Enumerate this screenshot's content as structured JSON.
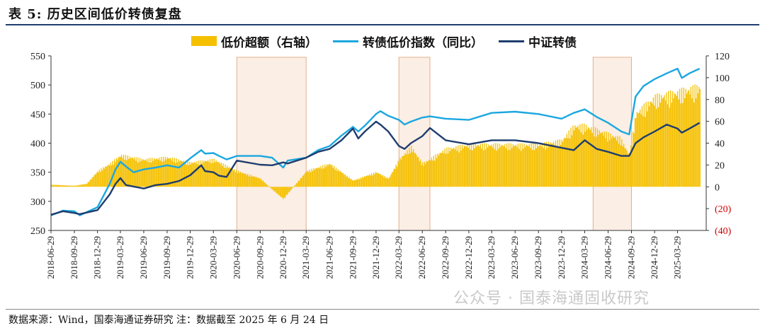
{
  "title": "表 5:  历史区间低价转债复盘",
  "footer": "数据来源：Wind，国泰海通证券研究  注：数据截至 2025 年 6 月 24 日",
  "watermark": "公众号 · 国泰海通固收研究",
  "colors": {
    "bar": "#f5c000",
    "line_light": "#1aa7e0",
    "line_dark": "#1f3d6e",
    "highlight_fill": "#fbeee4",
    "highlight_stroke": "#e3b08c",
    "negative_label": "#d00000"
  },
  "legend": {
    "bar_label": "低价超额（右轴）",
    "light_line_label": "转债低价指数（同比）",
    "dark_line_label": "中证转债"
  },
  "chart_data": {
    "type": "bar+line",
    "left_axis": {
      "ticks": [
        "250",
        "300",
        "350",
        "400",
        "450",
        "500",
        "550"
      ],
      "range": [
        250,
        550
      ]
    },
    "right_axis": {
      "ticks": [
        "(40)",
        "(20)",
        "0",
        "20",
        "40",
        "60",
        "80",
        "100",
        "120"
      ],
      "range": [
        -40,
        120
      ]
    },
    "x_ticks": [
      "2018-06-29",
      "2018-09-29",
      "2018-12-29",
      "2019-03-29",
      "2019-06-29",
      "2019-09-29",
      "2019-12-29",
      "2020-03-29",
      "2020-06-29",
      "2020-09-29",
      "2020-12-29",
      "2021-03-29",
      "2021-06-29",
      "2021-09-29",
      "2021-12-29",
      "2022-03-29",
      "2022-06-29",
      "2022-09-29",
      "2022-12-29",
      "2023-03-29",
      "2023-06-29",
      "2023-09-29",
      "2023-12-29",
      "2024-03-29",
      "2024-06-29",
      "2024-09-29",
      "2024-12-29",
      "2025-03-29"
    ],
    "highlight_periods": [
      [
        "2020-06-29",
        "2021-03-29"
      ],
      [
        "2022-03-29",
        "2022-07-29"
      ],
      [
        "2024-05-01",
        "2024-09-29"
      ]
    ],
    "series": [
      {
        "name": "低价超额（右轴）",
        "kind": "bar",
        "axis": "right",
        "points": [
          [
            "2018-06-29",
            2
          ],
          [
            "2018-09-29",
            1
          ],
          [
            "2018-11-15",
            3
          ],
          [
            "2018-12-29",
            15
          ],
          [
            "2019-02-15",
            22
          ],
          [
            "2019-03-29",
            30
          ],
          [
            "2019-06-29",
            26
          ],
          [
            "2019-09-29",
            28
          ],
          [
            "2019-12-29",
            23
          ],
          [
            "2020-03-29",
            26
          ],
          [
            "2020-06-29",
            15
          ],
          [
            "2020-09-29",
            8
          ],
          [
            "2020-11-15",
            -3
          ],
          [
            "2020-12-29",
            -12
          ],
          [
            "2021-01-20",
            -5
          ],
          [
            "2021-03-29",
            15
          ],
          [
            "2021-06-29",
            22
          ],
          [
            "2021-09-29",
            6
          ],
          [
            "2021-12-29",
            14
          ],
          [
            "2022-02-15",
            8
          ],
          [
            "2022-03-29",
            26
          ],
          [
            "2022-05-15",
            38
          ],
          [
            "2022-06-29",
            22
          ],
          [
            "2022-09-29",
            36
          ],
          [
            "2022-12-29",
            40
          ],
          [
            "2023-03-29",
            40
          ],
          [
            "2023-06-29",
            40
          ],
          [
            "2023-09-29",
            40
          ],
          [
            "2023-12-29",
            44
          ],
          [
            "2024-02-15",
            58
          ],
          [
            "2024-03-29",
            58
          ],
          [
            "2024-06-29",
            50
          ],
          [
            "2024-08-15",
            46
          ],
          [
            "2024-09-20",
            30
          ],
          [
            "2024-10-15",
            70
          ],
          [
            "2024-12-29",
            85
          ],
          [
            "2025-03-29",
            90
          ],
          [
            "2025-06-24",
            95
          ]
        ]
      },
      {
        "name": "转债低价指数（同比）",
        "kind": "line",
        "axis": "left",
        "points": [
          [
            "2018-06-29",
            276
          ],
          [
            "2018-08-15",
            284
          ],
          [
            "2018-09-29",
            283
          ],
          [
            "2018-10-20",
            276
          ],
          [
            "2018-12-29",
            290
          ],
          [
            "2019-02-15",
            330
          ],
          [
            "2019-03-10",
            355
          ],
          [
            "2019-03-29",
            368
          ],
          [
            "2019-04-20",
            360
          ],
          [
            "2019-05-20",
            350
          ],
          [
            "2019-06-29",
            355
          ],
          [
            "2019-08-15",
            358
          ],
          [
            "2019-09-29",
            362
          ],
          [
            "2019-11-15",
            358
          ],
          [
            "2019-12-29",
            374
          ],
          [
            "2020-02-10",
            388
          ],
          [
            "2020-02-25",
            382
          ],
          [
            "2020-03-29",
            383
          ],
          [
            "2020-04-20",
            378
          ],
          [
            "2020-05-20",
            372
          ],
          [
            "2020-06-29",
            378
          ],
          [
            "2020-09-29",
            378
          ],
          [
            "2020-11-15",
            375
          ],
          [
            "2020-12-29",
            358
          ],
          [
            "2021-01-15",
            370
          ],
          [
            "2021-03-29",
            375
          ],
          [
            "2021-05-15",
            388
          ],
          [
            "2021-06-29",
            395
          ],
          [
            "2021-08-15",
            413
          ],
          [
            "2021-09-29",
            428
          ],
          [
            "2021-10-20",
            420
          ],
          [
            "2021-11-15",
            430
          ],
          [
            "2021-12-29",
            450
          ],
          [
            "2022-01-15",
            455
          ],
          [
            "2022-02-15",
            447
          ],
          [
            "2022-03-29",
            440
          ],
          [
            "2022-04-20",
            432
          ],
          [
            "2022-05-15",
            437
          ],
          [
            "2022-06-29",
            444
          ],
          [
            "2022-07-29",
            446
          ],
          [
            "2022-09-29",
            442
          ],
          [
            "2022-12-29",
            440
          ],
          [
            "2023-03-29",
            452
          ],
          [
            "2023-06-29",
            454
          ],
          [
            "2023-09-29",
            450
          ],
          [
            "2023-12-29",
            442
          ],
          [
            "2024-02-15",
            452
          ],
          [
            "2024-03-29",
            458
          ],
          [
            "2024-05-15",
            445
          ],
          [
            "2024-06-29",
            435
          ],
          [
            "2024-08-20",
            420
          ],
          [
            "2024-09-20",
            415
          ],
          [
            "2024-10-15",
            480
          ],
          [
            "2024-11-15",
            498
          ],
          [
            "2024-12-29",
            510
          ],
          [
            "2025-02-15",
            520
          ],
          [
            "2025-03-29",
            528
          ],
          [
            "2025-04-15",
            512
          ],
          [
            "2025-05-15",
            520
          ],
          [
            "2025-06-24",
            528
          ]
        ]
      },
      {
        "name": "中证转债",
        "kind": "line",
        "axis": "left",
        "points": [
          [
            "2018-06-29",
            277
          ],
          [
            "2018-08-15",
            283
          ],
          [
            "2018-09-29",
            280
          ],
          [
            "2018-10-20",
            278
          ],
          [
            "2018-12-29",
            285
          ],
          [
            "2019-02-15",
            312
          ],
          [
            "2019-03-10",
            330
          ],
          [
            "2019-03-29",
            340
          ],
          [
            "2019-04-20",
            328
          ],
          [
            "2019-06-29",
            322
          ],
          [
            "2019-08-15",
            328
          ],
          [
            "2019-09-29",
            330
          ],
          [
            "2019-11-15",
            335
          ],
          [
            "2019-12-29",
            345
          ],
          [
            "2020-02-10",
            362
          ],
          [
            "2020-02-25",
            352
          ],
          [
            "2020-03-29",
            350
          ],
          [
            "2020-04-20",
            344
          ],
          [
            "2020-05-20",
            342
          ],
          [
            "2020-06-29",
            370
          ],
          [
            "2020-09-29",
            363
          ],
          [
            "2020-11-15",
            362
          ],
          [
            "2020-12-29",
            367
          ],
          [
            "2021-01-15",
            365
          ],
          [
            "2021-03-29",
            375
          ],
          [
            "2021-05-15",
            385
          ],
          [
            "2021-06-29",
            390
          ],
          [
            "2021-08-15",
            405
          ],
          [
            "2021-09-29",
            425
          ],
          [
            "2021-10-20",
            408
          ],
          [
            "2021-11-15",
            420
          ],
          [
            "2021-12-29",
            437
          ],
          [
            "2022-01-15",
            432
          ],
          [
            "2022-02-15",
            420
          ],
          [
            "2022-03-29",
            395
          ],
          [
            "2022-04-20",
            390
          ],
          [
            "2022-05-15",
            400
          ],
          [
            "2022-06-29",
            412
          ],
          [
            "2022-07-29",
            426
          ],
          [
            "2022-09-29",
            405
          ],
          [
            "2022-12-29",
            398
          ],
          [
            "2023-03-29",
            405
          ],
          [
            "2023-06-29",
            405
          ],
          [
            "2023-09-29",
            400
          ],
          [
            "2023-12-29",
            392
          ],
          [
            "2024-02-15",
            388
          ],
          [
            "2024-03-29",
            405
          ],
          [
            "2024-05-15",
            390
          ],
          [
            "2024-06-29",
            385
          ],
          [
            "2024-08-20",
            378
          ],
          [
            "2024-09-20",
            378
          ],
          [
            "2024-10-15",
            400
          ],
          [
            "2024-11-15",
            410
          ],
          [
            "2024-12-29",
            420
          ],
          [
            "2025-02-15",
            432
          ],
          [
            "2025-03-29",
            425
          ],
          [
            "2025-04-15",
            418
          ],
          [
            "2025-05-15",
            425
          ],
          [
            "2025-06-24",
            435
          ]
        ]
      }
    ]
  }
}
